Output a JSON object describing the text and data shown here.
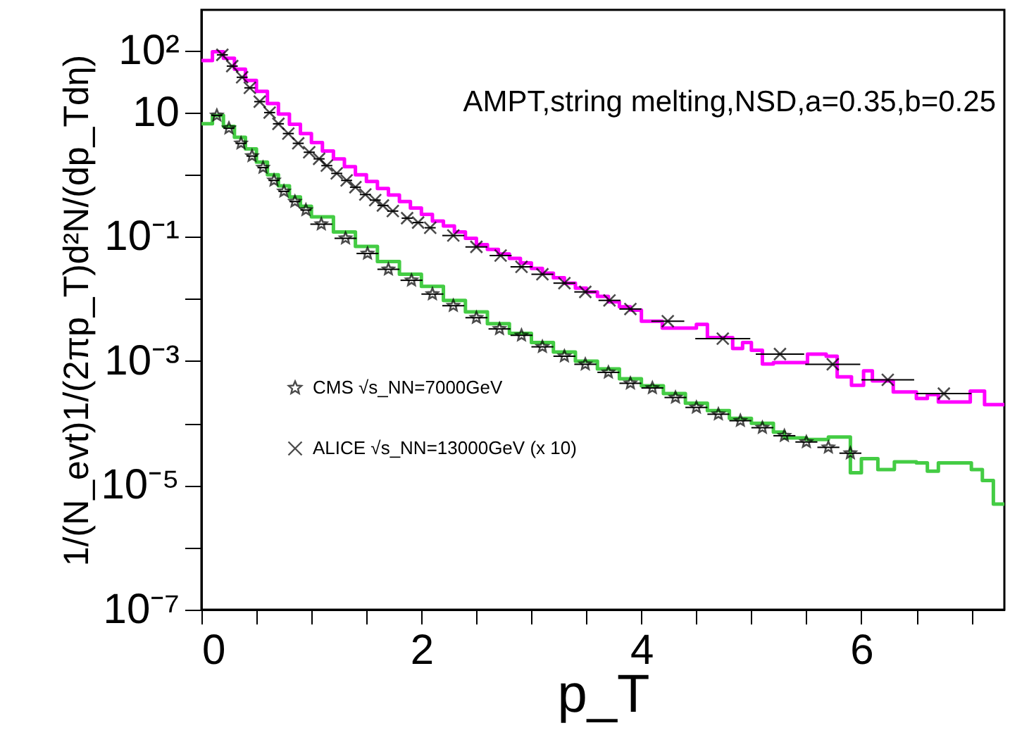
{
  "chart_data": {
    "type": "step",
    "xlabel": "p_T",
    "ylabel": "1/(N_evt)1/(2πp_T)d²N/(dp_Tdη)",
    "annotations": [
      "AMPT,string melting,NSD,a=0.35,b=0.25"
    ],
    "log": "y",
    "grid": false,
    "legend": "left",
    "xlim": [
      0,
      7.3
    ],
    "xticks": [
      0,
      {
        "value": 0.5,
        "label": null
      },
      {
        "value": 1,
        "label": null
      },
      {
        "value": 1.5,
        "label": null
      },
      2,
      {
        "value": 2.5,
        "label": null
      },
      {
        "value": 3,
        "label": null
      },
      {
        "value": 3.5,
        "label": null
      },
      4,
      {
        "value": 4.5,
        "label": null
      },
      {
        "value": 5,
        "label": null
      },
      {
        "value": 5.5,
        "label": null
      },
      6,
      {
        "value": 6.5,
        "label": null
      },
      {
        "value": 7,
        "label": null
      }
    ],
    "ylim": [
      1e-07,
      450
    ],
    "yticks": [
      {
        "value": 100,
        "label": "10²"
      },
      {
        "value": 10,
        "label": "10"
      },
      {
        "value": 1,
        "label": null
      },
      {
        "value": 0.1,
        "label": "10⁻¹"
      },
      {
        "value": 0.01,
        "label": null
      },
      {
        "value": 0.001,
        "label": "10⁻³"
      },
      {
        "value": 0.0001,
        "label": null
      },
      {
        "value": 1e-05,
        "label": "10⁻⁵"
      },
      {
        "value": 1e-06,
        "label": null
      },
      {
        "value": 1e-07,
        "label": "10⁻⁷"
      }
    ],
    "series": [
      {
        "type": "step",
        "color": "#ff00ff",
        "x": [
          0,
          0.1,
          0.2,
          0.3,
          0.4,
          0.5,
          0.6,
          0.7,
          0.8,
          0.9,
          1.0,
          1.1,
          1.2,
          1.3,
          1.4,
          1.5,
          1.6,
          1.7,
          1.8,
          1.9,
          2.0,
          2.1,
          2.2,
          2.3,
          2.4,
          2.5,
          2.6,
          2.7,
          2.8,
          2.9,
          3.0,
          3.1,
          3.2,
          3.3,
          3.4,
          3.5,
          3.6,
          3.7,
          3.8,
          3.9,
          4.0,
          4.19,
          4.5,
          4.6,
          4.83,
          4.92,
          5.0,
          5.1,
          5.2,
          5.51,
          5.68,
          5.78,
          5.91,
          6.02,
          6.1,
          6.29,
          6.5,
          6.6,
          6.7,
          6.99,
          7.12,
          7.3
        ],
        "values": [
          69,
          95,
          75,
          50,
          33,
          22,
          14,
          9.5,
          6.5,
          4.6,
          3.3,
          2.4,
          1.8,
          1.35,
          1.0,
          0.78,
          0.6,
          0.47,
          0.37,
          0.29,
          0.23,
          0.18,
          0.15,
          0.12,
          0.095,
          0.075,
          0.063,
          0.053,
          0.045,
          0.038,
          0.031,
          0.026,
          0.022,
          0.018,
          0.015,
          0.013,
          0.011,
          0.009,
          0.0075,
          0.0066,
          0.0044,
          0.0034,
          0.0039,
          0.0024,
          0.0016,
          0.002,
          0.0015,
          0.0009,
          0.00095,
          0.0013,
          0.0012,
          0.00056,
          0.00041,
          0.0007,
          0.00048,
          0.00032,
          0.00025,
          0.00029,
          0.00022,
          0.00033,
          0.0002,
          0.0002
        ]
      },
      {
        "type": "step",
        "color": "#44cc44",
        "x": [
          0,
          0.1,
          0.2,
          0.3,
          0.4,
          0.5,
          0.6,
          0.7,
          0.8,
          0.9,
          1.0,
          1.2,
          1.4,
          1.6,
          1.8,
          2.0,
          2.2,
          2.4,
          2.6,
          2.8,
          3.0,
          3.2,
          3.4,
          3.6,
          3.8,
          4.0,
          4.2,
          4.4,
          4.6,
          4.8,
          5.0,
          5.2,
          5.3,
          5.5,
          5.7,
          5.9,
          6.0,
          6.15,
          6.3,
          6.5,
          6.6,
          6.7,
          7.0,
          7.1,
          7.2,
          7.3
        ],
        "values": [
          6.6,
          9,
          6.0,
          4.0,
          2.6,
          1.6,
          1.0,
          0.66,
          0.44,
          0.31,
          0.21,
          0.12,
          0.07,
          0.04,
          0.025,
          0.016,
          0.0095,
          0.0062,
          0.004,
          0.0028,
          0.002,
          0.0014,
          0.001,
          0.00075,
          0.00052,
          0.0004,
          0.0003,
          0.00021,
          0.00016,
          0.00012,
          0.0001,
          7.2e-05,
          5.8e-05,
          5.5e-05,
          6e-05,
          1.6e-05,
          2.7e-05,
          1.8e-05,
          2.4e-05,
          2.3e-05,
          1.7e-05,
          2.3e-05,
          1.8e-05,
          1.2e-05,
          5e-06,
          5e-06
        ]
      },
      {
        "type": "scatter",
        "name": "CMS √s_NN=7000GeV",
        "color": "#000000",
        "marker": "star",
        "x": [
          0.14,
          0.25,
          0.36,
          0.46,
          0.56,
          0.66,
          0.75,
          0.85,
          0.95,
          1.09,
          1.31,
          1.51,
          1.7,
          1.91,
          2.1,
          2.29,
          2.5,
          2.71,
          2.91,
          3.1,
          3.3,
          3.49,
          3.7,
          3.9,
          4.1,
          4.31,
          4.5,
          4.7,
          4.9,
          5.1,
          5.3,
          5.5,
          5.7,
          5.9
        ],
        "values": [
          9,
          5.6,
          3.2,
          2.0,
          1.3,
          0.81,
          0.54,
          0.37,
          0.27,
          0.16,
          0.095,
          0.054,
          0.03,
          0.02,
          0.012,
          0.0078,
          0.005,
          0.0033,
          0.0026,
          0.0017,
          0.0012,
          0.00089,
          0.00066,
          0.00044,
          0.00037,
          0.00026,
          0.00018,
          0.00014,
          0.00011,
          8.5e-05,
          6.3e-05,
          5e-05,
          4.1e-05,
          3.3e-05
        ],
        "xerrors": [
          0.05,
          0.05,
          0.05,
          0.05,
          0.05,
          0.05,
          0.05,
          0.05,
          0.05,
          0.1,
          0.1,
          0.1,
          0.1,
          0.1,
          0.1,
          0.1,
          0.1,
          0.1,
          0.1,
          0.1,
          0.1,
          0.1,
          0.1,
          0.1,
          0.1,
          0.1,
          0.1,
          0.1,
          0.1,
          0.1,
          0.1,
          0.1,
          0.1,
          0.1
        ]
      },
      {
        "type": "scatter",
        "name": "ALICE  √s_NN=13000GeV (x 10)",
        "color": "#000000",
        "marker": "cross",
        "x": [
          0.19,
          0.28,
          0.37,
          0.44,
          0.53,
          0.62,
          0.7,
          0.79,
          0.88,
          0.98,
          1.07,
          1.14,
          1.23,
          1.32,
          1.4,
          1.49,
          1.58,
          1.65,
          1.74,
          1.87,
          1.97,
          2.08,
          2.29,
          2.5,
          2.72,
          2.91,
          3.1,
          3.3,
          3.49,
          3.71,
          3.9,
          4.24,
          4.74,
          5.26,
          5.74,
          6.24,
          6.75
        ],
        "values": [
          85,
          56,
          37,
          25,
          15,
          10,
          6.6,
          4.6,
          3.2,
          2.3,
          1.8,
          1.4,
          1.05,
          0.81,
          0.63,
          0.48,
          0.39,
          0.32,
          0.26,
          0.2,
          0.17,
          0.14,
          0.105,
          0.069,
          0.05,
          0.033,
          0.025,
          0.018,
          0.013,
          0.0095,
          0.0069,
          0.0044,
          0.0023,
          0.0013,
          0.00089,
          0.0005,
          0.0003
        ],
        "xerrors": [
          0.05,
          0.05,
          0.05,
          0.05,
          0.05,
          0.05,
          0.05,
          0.05,
          0.05,
          0.05,
          0.05,
          0.05,
          0.05,
          0.05,
          0.05,
          0.05,
          0.05,
          0.05,
          0.05,
          0.05,
          0.05,
          0.05,
          0.1,
          0.1,
          0.1,
          0.1,
          0.1,
          0.1,
          0.1,
          0.1,
          0.1,
          0.15,
          0.25,
          0.22,
          0.25,
          0.24,
          0.25
        ]
      }
    ]
  }
}
